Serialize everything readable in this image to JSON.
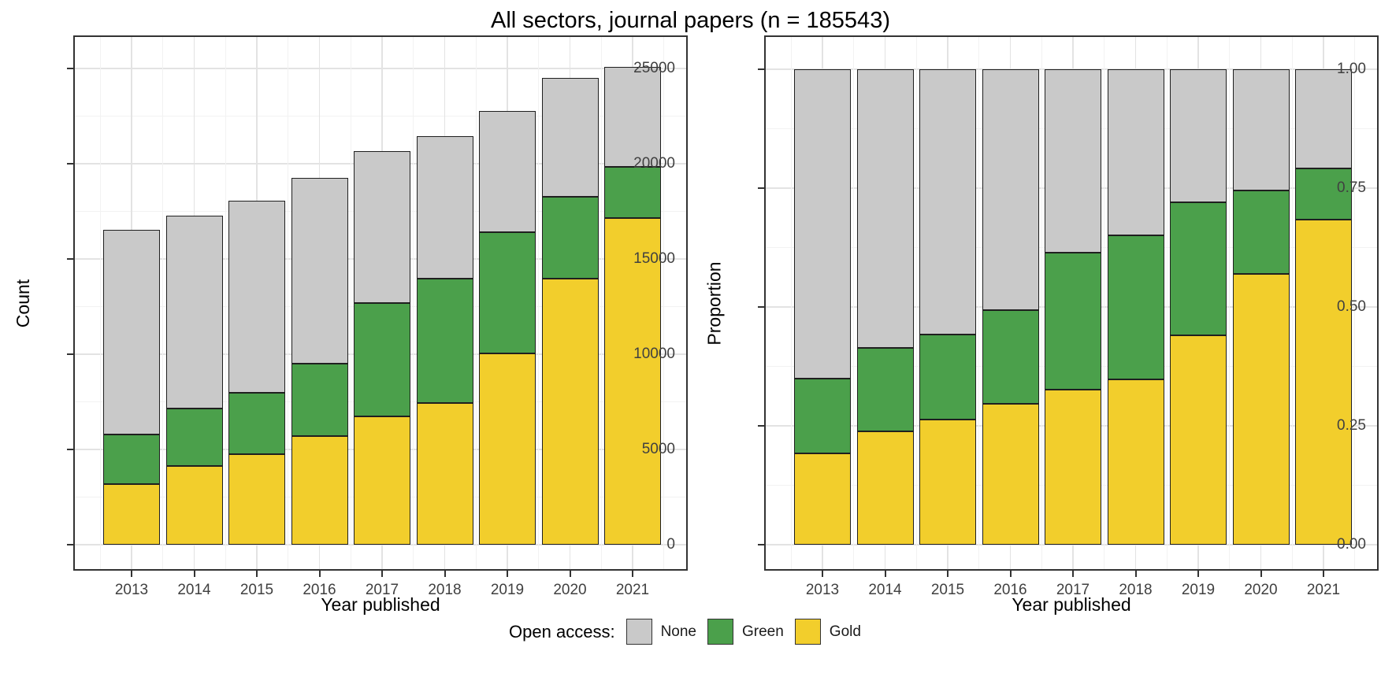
{
  "title": "All sectors, journal papers (n = 185543)",
  "legend": {
    "title": "Open access:",
    "position": "bottom-center",
    "items": [
      {
        "label": "None",
        "color": "#C9C9C9"
      },
      {
        "label": "Green",
        "color": "#4BA04B"
      },
      {
        "label": "Gold",
        "color": "#F2CE2C"
      }
    ]
  },
  "colors": {
    "fill_none": "#C9C9C9",
    "fill_green": "#4BA04B",
    "fill_gold": "#F2CE2C",
    "bar_outline": "#1F1F1F",
    "panel_border": "#333333",
    "grid_major": "#E3E3E3",
    "grid_minor": "#F2F2F2",
    "tick_text": "#404040"
  },
  "chart_data": [
    {
      "type": "bar",
      "stacked": true,
      "panel": "left",
      "title": "All sectors, journal papers (n = 185543)",
      "xlabel": "Year published",
      "ylabel": "Count",
      "grid": true,
      "legend_position": "bottom",
      "categories": [
        "2013",
        "2014",
        "2015",
        "2016",
        "2017",
        "2018",
        "2019",
        "2020",
        "2021"
      ],
      "yticks": [
        0,
        5000,
        10000,
        15000,
        20000,
        25000
      ],
      "ytick_labels": [
        "0",
        "5000",
        "10000",
        "15000",
        "20000",
        "25000"
      ],
      "ylim": [
        0,
        25000
      ],
      "series": [
        {
          "name": "Gold",
          "color": "#F2CE2C",
          "values": [
            3180,
            4130,
            4750,
            5700,
            6740,
            7440,
            10040,
            13970,
            17150
          ]
        },
        {
          "name": "Green",
          "color": "#4BA04B",
          "values": [
            2610,
            3020,
            3230,
            3800,
            5950,
            6530,
            6360,
            4290,
            2690
          ]
        },
        {
          "name": "None",
          "color": "#C9C9C9",
          "values": [
            10740,
            10120,
            10080,
            9760,
            7970,
            7480,
            6370,
            6240,
            5240
          ]
        }
      ],
      "stack_totals": [
        16530,
        17270,
        18060,
        19260,
        20660,
        21450,
        22770,
        24500,
        25080
      ]
    },
    {
      "type": "bar",
      "stacked": true,
      "panel": "right",
      "title": "All sectors, journal papers (n = 185543)",
      "xlabel": "Year published",
      "ylabel": "Proportion",
      "grid": true,
      "legend_position": "bottom",
      "categories": [
        "2013",
        "2014",
        "2015",
        "2016",
        "2017",
        "2018",
        "2019",
        "2020",
        "2021"
      ],
      "yticks": [
        0,
        0.25,
        0.5,
        0.75,
        1.0
      ],
      "ytick_labels": [
        "0.00",
        "0.25",
        "0.50",
        "0.75",
        "1.00"
      ],
      "ylim": [
        0,
        1.0
      ],
      "series": [
        {
          "name": "Gold",
          "color": "#F2CE2C",
          "values": [
            0.192,
            0.239,
            0.263,
            0.296,
            0.326,
            0.347,
            0.441,
            0.57,
            0.684
          ]
        },
        {
          "name": "Green",
          "color": "#4BA04B",
          "values": [
            0.158,
            0.175,
            0.179,
            0.197,
            0.288,
            0.304,
            0.279,
            0.175,
            0.107
          ]
        },
        {
          "name": "None",
          "color": "#C9C9C9",
          "values": [
            0.65,
            0.586,
            0.558,
            0.507,
            0.386,
            0.349,
            0.28,
            0.255,
            0.209
          ]
        }
      ],
      "stack_totals": [
        1.0,
        1.0,
        1.0,
        1.0,
        1.0,
        1.0,
        1.0,
        1.0,
        1.0
      ]
    }
  ]
}
